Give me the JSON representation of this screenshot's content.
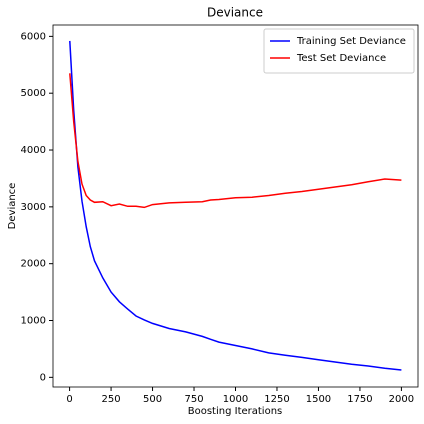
{
  "chart_data": {
    "type": "line",
    "title": "Deviance",
    "x_label": "Boosting Iterations",
    "y_label": "Deviance",
    "x": [
      1,
      25,
      50,
      75,
      100,
      125,
      150,
      200,
      250,
      300,
      350,
      400,
      450,
      500,
      600,
      700,
      800,
      850,
      900,
      1000,
      1100,
      1200,
      1300,
      1400,
      1500,
      1600,
      1700,
      1800,
      1900,
      2000
    ],
    "series": [
      {
        "name": "Training Set Deviance",
        "color": "#0000ff",
        "values": [
          5920,
          4700,
          3700,
          3100,
          2650,
          2300,
          2050,
          1750,
          1500,
          1330,
          1200,
          1080,
          1010,
          950,
          860,
          800,
          720,
          670,
          620,
          560,
          500,
          430,
          390,
          350,
          310,
          270,
          230,
          200,
          160,
          130
        ]
      },
      {
        "name": "Test Set Deviance",
        "color": "#ff0000",
        "values": [
          5350,
          4500,
          3800,
          3400,
          3200,
          3120,
          3080,
          3090,
          3020,
          3050,
          3010,
          3010,
          2990,
          3040,
          3070,
          3080,
          3090,
          3120,
          3130,
          3160,
          3170,
          3200,
          3240,
          3270,
          3310,
          3350,
          3390,
          3440,
          3490,
          3470
        ]
      }
    ],
    "xlim": [
      -100,
      2100
    ],
    "ylim": [
      -170,
      6200
    ],
    "xticks": [
      0,
      250,
      500,
      750,
      1000,
      1250,
      1500,
      1750,
      2000
    ],
    "yticks": [
      0,
      1000,
      2000,
      3000,
      4000,
      5000,
      6000
    ],
    "legend": "upper right"
  }
}
